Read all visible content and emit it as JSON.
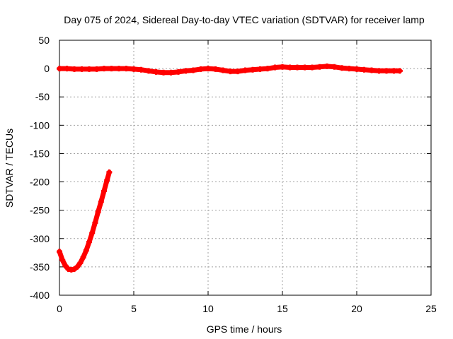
{
  "chart_data": {
    "type": "scatter",
    "title": "Day 075 of 2024, Sidereal Day-to-day VTEC variation (SDTVAR) for receiver lamp",
    "xlabel": "GPS time / hours",
    "ylabel": "SDTVAR / TECUs",
    "xlim": [
      0,
      25
    ],
    "ylim": [
      -400,
      50
    ],
    "xticks": [
      0,
      5,
      10,
      15,
      20,
      25
    ],
    "yticks": [
      50,
      0,
      -50,
      -100,
      -150,
      -200,
      -250,
      -300,
      -350,
      -400
    ],
    "grid": true,
    "marker_color": "#ff0000",
    "series": [
      {
        "name": "SDTVAR (near-zero trace)",
        "x": [
          0.0,
          0.5,
          1.0,
          1.5,
          2.0,
          2.5,
          3.0,
          3.5,
          4.0,
          4.5,
          5.0,
          5.5,
          6.0,
          6.5,
          7.0,
          7.5,
          8.0,
          8.5,
          9.0,
          9.5,
          10.0,
          10.5,
          11.0,
          11.5,
          12.0,
          12.5,
          13.0,
          13.5,
          14.0,
          14.5,
          15.0,
          15.5,
          16.0,
          16.5,
          17.0,
          17.5,
          18.0,
          18.5,
          19.0,
          19.5,
          20.0,
          20.5,
          21.0,
          21.5,
          22.0,
          22.5,
          22.9
        ],
        "y": [
          0,
          0,
          -1,
          -1,
          -1,
          -1,
          0,
          0,
          0,
          0,
          -1,
          -2,
          -4,
          -6,
          -7,
          -7,
          -6,
          -4,
          -3,
          -1,
          0,
          -1,
          -3,
          -5,
          -5,
          -3,
          -2,
          -1,
          0,
          2,
          3,
          2,
          2,
          2,
          2,
          3,
          4,
          3,
          1,
          0,
          -1,
          -2,
          -3,
          -4,
          -4,
          -4,
          -4
        ]
      },
      {
        "name": "SDTVAR (early-arc trace)",
        "x": [
          0.0,
          0.2,
          0.4,
          0.6,
          0.8,
          1.0,
          1.2,
          1.4,
          1.6,
          1.8,
          2.0,
          2.2,
          2.4,
          2.6,
          2.8,
          3.0,
          3.2,
          3.35
        ],
        "y": [
          -323,
          -338,
          -348,
          -354,
          -355,
          -354,
          -350,
          -343,
          -333,
          -321,
          -306,
          -290,
          -272,
          -253,
          -235,
          -216,
          -197,
          -183
        ]
      }
    ]
  }
}
